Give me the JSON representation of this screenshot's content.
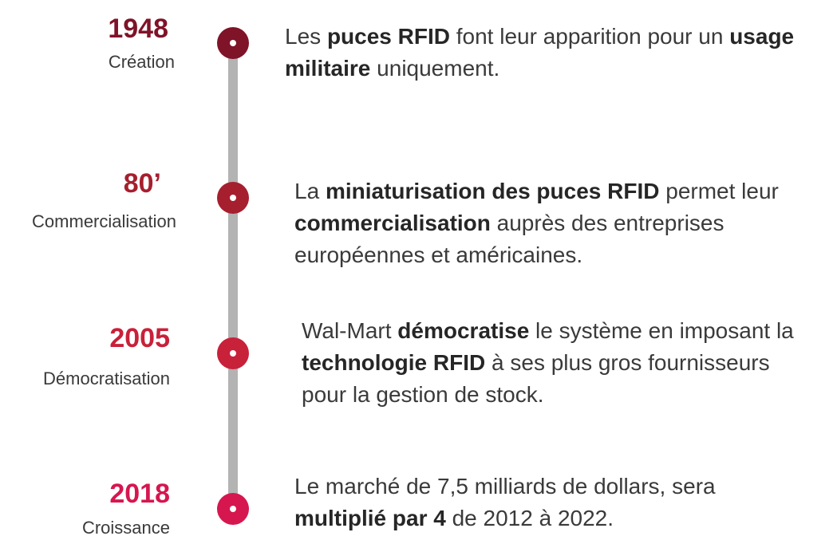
{
  "events": [
    {
      "year": "1948",
      "label": "Création",
      "color": "#7f1328",
      "text": {
        "l1a": "Les ",
        "l1b": "puces RFID",
        "l1c": " font leur apparition pour un ",
        "l1d": "usage",
        "l2a": "militaire",
        "l2b": " uniquement."
      }
    },
    {
      "year": "80’",
      "label": "Commercialisation",
      "color": "#a61f2e",
      "text": {
        "l1a": "La ",
        "l1b": "miniaturisation des puces RFID",
        "l1c": " permet leur",
        "l2a": "commercialisation",
        "l2b": " auprès des entreprises",
        "l3a": "européennes et américaines."
      }
    },
    {
      "year": "2005",
      "label": "Démocratisation",
      "color": "#c8213a",
      "text": {
        "l1a": "Wal-Mart ",
        "l1b": "démocratise",
        "l1c": " le système en imposant la",
        "l2a": "technologie RFID",
        "l2b": " à ses plus gros fournisseurs",
        "l3a": "pour la gestion de stock."
      }
    },
    {
      "year": "2018",
      "label": "Croissance",
      "color": "#d6164f",
      "text": {
        "l1a": "Le marché de 7,5 milliards de dollars, sera",
        "l2a": "multiplié par 4",
        "l2b": " de 2012 à 2022."
      }
    }
  ],
  "timeline_color": "#b3b3b3"
}
